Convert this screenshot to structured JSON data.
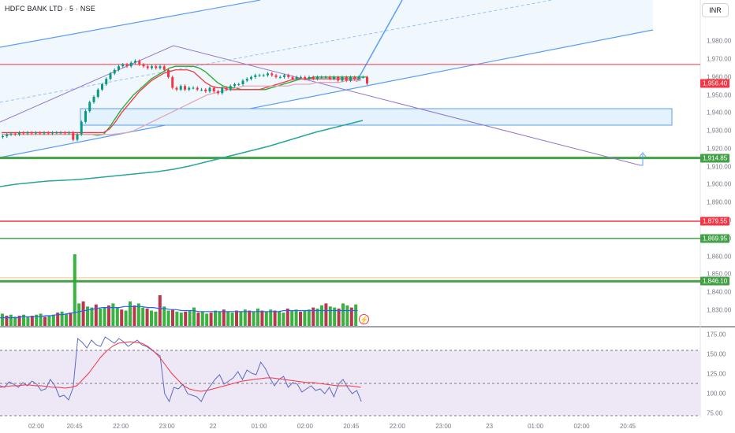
{
  "header": {
    "symbol_line": "HDFC BANK LTD · 5 · NSE"
  },
  "currency_button": "INR",
  "colors": {
    "up": "#089981",
    "down": "#f23645",
    "vol_up": "#22ab2a",
    "vol_down": "#b2223a",
    "ema_fast": "#22ab2a",
    "ema_mid": "#f23645",
    "ema_slow": "#e3a7b8",
    "ema_long": "#26a69a",
    "channel": "#5b9cf6",
    "trend": "#9575cd",
    "rsi": "#5c6bc0",
    "rsi_ma": "#f23645",
    "rsi_band": "#ede7f6",
    "zone_fill": "#e3f2fd"
  },
  "chart_data": {
    "type": "candlestick",
    "symbol": "HDFC BANK LTD",
    "interval": "5",
    "exchange": "NSE",
    "currency": "INR",
    "price_axis": {
      "range": [
        1826,
        1992
      ],
      "ticks": [
        "1,980.00",
        "1,970.00",
        "1,960.00",
        "1,950.00",
        "1,940.00",
        "1,930.00",
        "1,920.00",
        "1,910.00",
        "1,900.00",
        "1,890.00",
        "1,880.00",
        "1,870.00",
        "1,860.00",
        "1,850.00",
        "1,840.00",
        "1,830.00"
      ],
      "tick_values": [
        1980,
        1970,
        1960,
        1950,
        1940,
        1930,
        1920,
        1910,
        1900,
        1890,
        1880,
        1870,
        1860,
        1850,
        1840,
        1830
      ]
    },
    "price_labels": [
      {
        "text": "1,956.40",
        "value": 1956.4,
        "color": "#f23645"
      },
      {
        "text": "1,914.85",
        "value": 1914.85,
        "color": "#43a047"
      },
      {
        "text": "1,879.55",
        "value": 1879.55,
        "color": "#f23645"
      },
      {
        "text": "1,869.95",
        "value": 1869.95,
        "color": "#43a047"
      },
      {
        "text": "1,846.10",
        "value": 1846.1,
        "color": "#43a047"
      }
    ],
    "horizontal_levels": [
      {
        "value": 1914.85,
        "color": "#43a047",
        "width": 3
      },
      {
        "value": 1879.55,
        "color": "#f23645",
        "width": 1.5
      },
      {
        "value": 1869.95,
        "color": "#43a047",
        "width": 1.5
      },
      {
        "value": 1846.1,
        "color": "#43a047",
        "width": 3
      },
      {
        "value": 1848,
        "color": "#f0c48a",
        "width": 1
      },
      {
        "value": 1967,
        "color": "#f23645",
        "width": 1
      }
    ],
    "time_axis": {
      "ticks": [
        "02:00",
        "20:45",
        "22:00",
        "23:00",
        "22",
        "01:00",
        "02:00",
        "20:45",
        "22:00",
        "23:00",
        "23",
        "01:00",
        "02:00",
        "20:45"
      ],
      "tick_index": [
        0,
        10,
        22,
        34,
        46,
        58,
        70,
        82,
        94,
        106,
        118,
        130,
        142,
        154
      ]
    },
    "candles_close": [
      1927,
      1928,
      1928.5,
      1928,
      1929,
      1928.5,
      1929,
      1928.5,
      1929,
      1928.5,
      1929,
      1928.5,
      1929,
      1929,
      1929,
      1928.6,
      1929,
      1925,
      1928,
      1935,
      1941,
      1946,
      1949,
      1953,
      1956,
      1959,
      1962,
      1964,
      1966,
      1967,
      1966,
      1968,
      1969,
      1967,
      1966,
      1965,
      1966,
      1965,
      1966,
      1964,
      1960,
      1954,
      1953,
      1955,
      1953,
      1954,
      1954,
      1953,
      1953,
      1952,
      1954,
      1952,
      1951,
      1954,
      1953,
      1955,
      1956,
      1956,
      1958,
      1959,
      1960,
      1961,
      1961,
      1961,
      1962,
      1961,
      1960,
      1960,
      1961,
      1960,
      1959,
      1960,
      1960,
      1959,
      1960,
      1959,
      1960,
      1960,
      1960,
      1959,
      1960,
      1958,
      1960,
      1958,
      1960,
      1959,
      1960,
      1960,
      1956.4
    ],
    "series": [
      {
        "name": "EMA fast",
        "values": [
          1928,
          1928,
          1928,
          1928,
          1928,
          1928,
          1928,
          1928,
          1928,
          1928,
          1928,
          1928,
          1928,
          1928,
          1928,
          1928,
          1927.5,
          1928,
          1932,
          1937,
          1942,
          1946,
          1950,
          1953,
          1956,
          1959,
          1961,
          1963,
          1965,
          1966,
          1966,
          1966,
          1966,
          1965,
          1963,
          1960,
          1957,
          1955,
          1954,
          1954,
          1953,
          1953,
          1953,
          1953,
          1953,
          1954,
          1955,
          1956,
          1957,
          1958,
          1959,
          1959,
          1960,
          1960,
          1960,
          1960,
          1960,
          1960,
          1960,
          1960,
          1960,
          1960
        ]
      },
      {
        "name": "EMA mid",
        "values": [
          1929,
          1929,
          1929,
          1929,
          1929,
          1929,
          1929,
          1929,
          1929,
          1929,
          1929,
          1929,
          1929,
          1929,
          1929,
          1929,
          1929,
          1929,
          1931,
          1935,
          1940,
          1944,
          1948,
          1952,
          1955,
          1958,
          1960,
          1962,
          1963,
          1964,
          1964,
          1964,
          1963,
          1960,
          1957,
          1955,
          1954,
          1954,
          1953,
          1953,
          1953,
          1953,
          1953,
          1953,
          1954,
          1955,
          1956,
          1957,
          1958,
          1959,
          1959,
          1959,
          1959,
          1959,
          1959,
          1959,
          1959,
          1959,
          1959,
          1959,
          1959
        ]
      },
      {
        "name": "EMA slow",
        "values": [
          1928,
          1928,
          1928,
          1928,
          1928,
          1928,
          1928,
          1928,
          1928,
          1928,
          1928,
          1928,
          1928,
          1928,
          1928,
          1928,
          1928.5,
          1929,
          1930,
          1932,
          1934,
          1936,
          1938,
          1940,
          1942,
          1944,
          1946,
          1948,
          1950,
          1951,
          1952,
          1953,
          1954,
          1955,
          1955,
          1955,
          1955,
          1955,
          1955,
          1955,
          1956,
          1956,
          1956,
          1957,
          1957,
          1957,
          1957,
          1958,
          1958,
          1958
        ]
      },
      {
        "name": "EMA long",
        "values": [
          1900,
          1901,
          1902,
          1903,
          1904,
          1906,
          1909,
          1912,
          1914,
          1916,
          1918,
          1920,
          1922,
          1924,
          1925,
          1926,
          1927,
          1928,
          1929,
          1930,
          1931,
          1932,
          1933,
          1934
        ]
      }
    ],
    "volume": {
      "values": [
        12,
        10,
        11,
        9,
        10,
        11,
        9,
        10,
        11,
        12,
        9,
        10,
        11,
        13,
        14,
        12,
        13,
        70,
        22,
        24,
        19,
        18,
        21,
        17,
        18,
        20,
        22,
        18,
        16,
        15,
        24,
        20,
        22,
        18,
        17,
        15,
        14,
        30,
        19,
        15,
        16,
        14,
        13,
        14,
        15,
        18,
        13,
        14,
        12,
        13,
        15,
        14,
        16,
        14,
        13,
        15,
        14,
        16,
        15,
        14,
        17,
        15,
        14,
        16,
        15,
        14,
        13,
        17,
        15,
        16,
        14,
        15,
        16,
        18,
        17,
        20,
        22,
        19,
        18,
        17,
        22,
        20,
        18,
        21
      ],
      "ma": [
        8,
        8,
        8,
        8,
        9,
        9,
        9,
        9,
        10,
        10,
        11,
        11,
        12,
        13,
        14,
        15,
        16,
        17,
        18,
        18,
        18,
        18,
        19,
        19,
        19,
        19,
        18,
        18,
        17,
        17,
        16,
        16,
        15,
        15,
        15,
        14,
        14,
        14,
        14,
        14,
        14,
        14,
        14,
        14,
        14,
        14,
        14,
        14,
        14,
        14,
        15,
        15,
        15,
        15,
        15,
        15,
        15,
        15,
        15,
        15,
        15,
        15,
        15,
        15
      ]
    },
    "rsi": {
      "axis_ticks": [
        "175.00",
        "150.00",
        "125.00",
        "100.00",
        "75.00"
      ],
      "axis_values": [
        175,
        150,
        125,
        100,
        75
      ],
      "range": [
        70,
        180
      ],
      "upper_band": 155,
      "lower_band": 72,
      "mid_line": 113,
      "values": [
        110,
        108,
        115,
        112,
        108,
        114,
        110,
        116,
        112,
        104,
        106,
        118,
        110,
        96,
        98,
        92,
        108,
        170,
        165,
        158,
        168,
        162,
        160,
        172,
        168,
        164,
        170,
        166,
        160,
        164,
        168,
        162,
        160,
        156,
        152,
        148,
        100,
        90,
        108,
        106,
        112,
        100,
        98,
        96,
        90,
        102,
        110,
        118,
        124,
        112,
        116,
        120,
        128,
        118,
        130,
        126,
        124,
        140,
        132,
        120,
        110,
        118,
        122,
        108,
        114,
        112,
        102,
        106,
        110,
        104,
        106,
        100,
        108,
        96,
        112,
        118,
        108,
        100,
        104,
        90
      ],
      "ma": [
        108,
        109,
        110,
        110,
        111,
        111,
        110,
        110,
        109,
        108,
        108,
        107,
        108,
        110,
        118,
        126,
        136,
        146,
        154,
        160,
        164,
        165,
        166,
        165,
        164,
        160,
        154,
        146,
        136,
        126,
        118,
        110,
        106,
        104,
        103,
        104,
        106,
        108,
        110,
        112,
        114,
        116,
        117,
        118,
        119,
        120,
        120,
        119,
        118,
        117,
        116,
        115,
        114,
        114,
        113,
        112,
        111,
        110,
        110,
        110,
        109,
        108
      ]
    }
  }
}
